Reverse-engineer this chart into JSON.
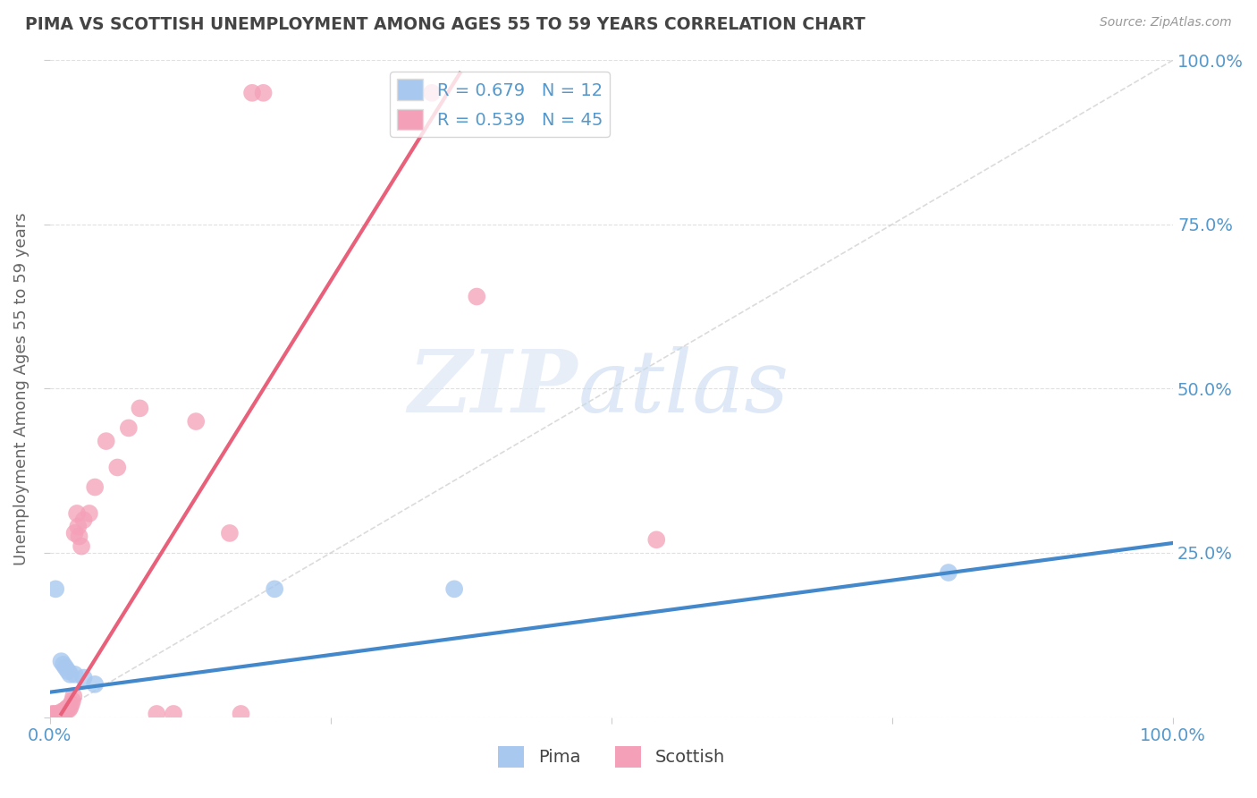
{
  "title": "PIMA VS SCOTTISH UNEMPLOYMENT AMONG AGES 55 TO 59 YEARS CORRELATION CHART",
  "source": "Source: ZipAtlas.com",
  "ylabel": "Unemployment Among Ages 55 to 59 years",
  "xlim": [
    0,
    1.0
  ],
  "ylim": [
    0,
    1.0
  ],
  "pima_color": "#a8c8f0",
  "scottish_color": "#f4a0b8",
  "pima_line_color": "#4488cc",
  "scottish_line_color": "#e8607a",
  "diagonal_color": "#cccccc",
  "legend_R_pima": "R = 0.679   N = 12",
  "legend_R_scottish": "R = 0.539   N = 45",
  "background_color": "#ffffff",
  "grid_color": "#dddddd",
  "title_color": "#444444",
  "axis_label_color": "#666666",
  "tick_label_color": "#5599cc",
  "pima_points": [
    [
      0.005,
      0.195
    ],
    [
      0.01,
      0.085
    ],
    [
      0.012,
      0.08
    ],
    [
      0.014,
      0.075
    ],
    [
      0.016,
      0.07
    ],
    [
      0.018,
      0.065
    ],
    [
      0.022,
      0.065
    ],
    [
      0.03,
      0.06
    ],
    [
      0.04,
      0.05
    ],
    [
      0.2,
      0.195
    ],
    [
      0.36,
      0.195
    ],
    [
      0.8,
      0.22
    ]
  ],
  "scottish_points": [
    [
      0.002,
      0.005
    ],
    [
      0.003,
      0.003
    ],
    [
      0.004,
      0.002
    ],
    [
      0.004,
      0.005
    ],
    [
      0.005,
      0.003
    ],
    [
      0.005,
      0.004
    ],
    [
      0.006,
      0.003
    ],
    [
      0.007,
      0.005
    ],
    [
      0.008,
      0.003
    ],
    [
      0.009,
      0.003
    ],
    [
      0.01,
      0.005
    ],
    [
      0.01,
      0.008
    ],
    [
      0.011,
      0.004
    ],
    [
      0.012,
      0.006
    ],
    [
      0.013,
      0.01
    ],
    [
      0.014,
      0.012
    ],
    [
      0.015,
      0.01
    ],
    [
      0.016,
      0.015
    ],
    [
      0.017,
      0.012
    ],
    [
      0.018,
      0.015
    ],
    [
      0.019,
      0.02
    ],
    [
      0.02,
      0.025
    ],
    [
      0.021,
      0.032
    ],
    [
      0.022,
      0.28
    ],
    [
      0.024,
      0.31
    ],
    [
      0.025,
      0.29
    ],
    [
      0.026,
      0.275
    ],
    [
      0.028,
      0.26
    ],
    [
      0.03,
      0.3
    ],
    [
      0.035,
      0.31
    ],
    [
      0.04,
      0.35
    ],
    [
      0.05,
      0.42
    ],
    [
      0.06,
      0.38
    ],
    [
      0.07,
      0.44
    ],
    [
      0.08,
      0.47
    ],
    [
      0.095,
      0.005
    ],
    [
      0.11,
      0.005
    ],
    [
      0.13,
      0.45
    ],
    [
      0.16,
      0.28
    ],
    [
      0.17,
      0.005
    ],
    [
      0.18,
      0.95
    ],
    [
      0.19,
      0.95
    ],
    [
      0.34,
      0.95
    ],
    [
      0.38,
      0.64
    ],
    [
      0.54,
      0.27
    ]
  ],
  "pima_line_x": [
    0.0,
    1.0
  ],
  "pima_line_y": [
    0.038,
    0.265
  ],
  "scottish_line_x": [
    0.01,
    0.365
  ],
  "scottish_line_y": [
    0.005,
    0.98
  ]
}
